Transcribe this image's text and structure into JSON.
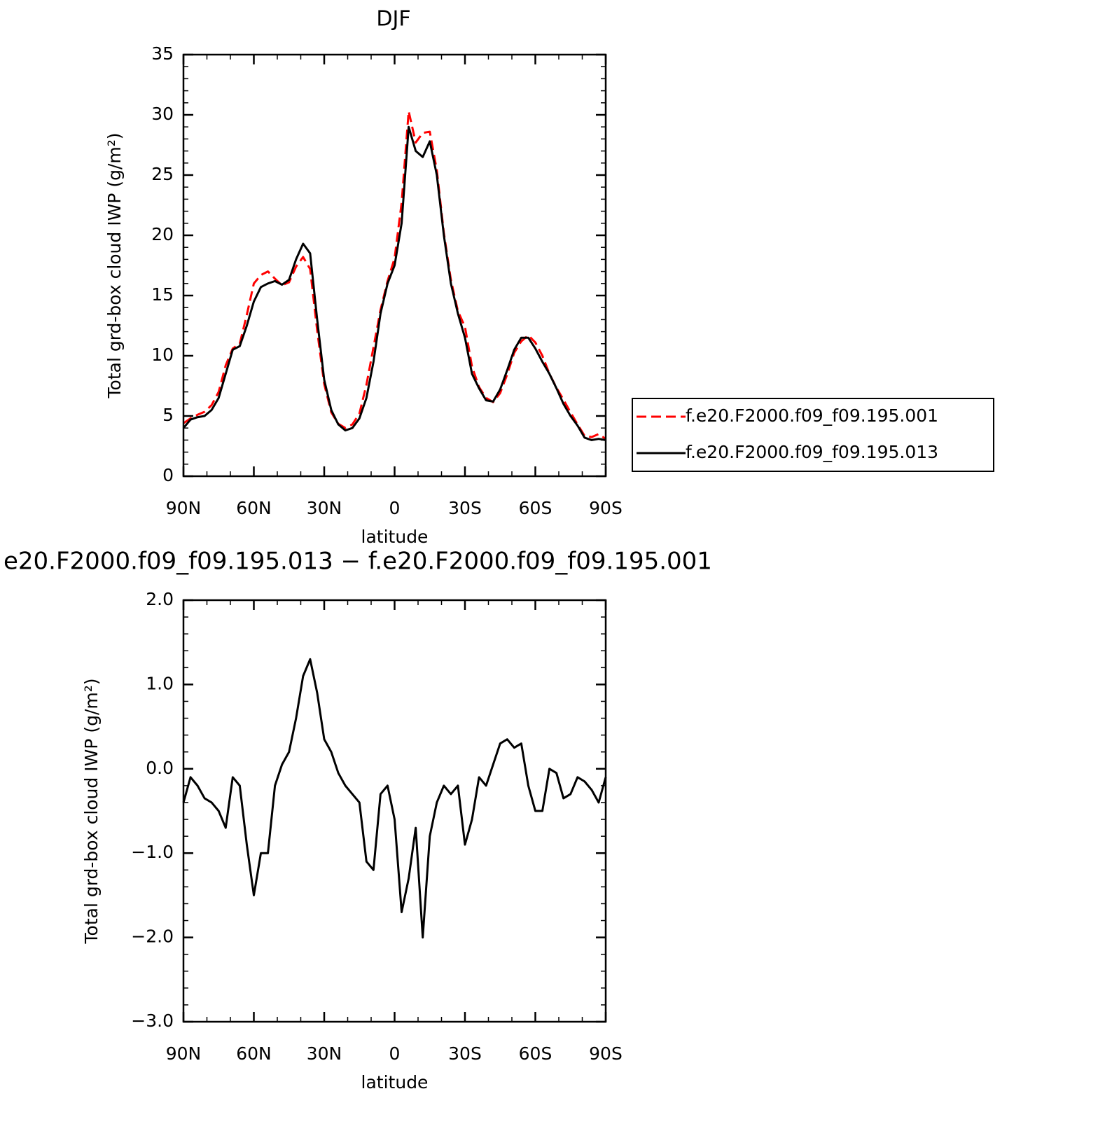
{
  "chart_data": [
    {
      "type": "line",
      "title": "DJF",
      "x_label": "latitude",
      "y_label": "Total grd-box cloud IWP (g/m²)",
      "x": [
        90,
        87,
        84,
        81,
        78,
        75,
        72,
        69,
        66,
        63,
        60,
        57,
        54,
        51,
        48,
        45,
        42,
        39,
        36,
        33,
        30,
        27,
        24,
        21,
        18,
        15,
        12,
        9,
        6,
        3,
        0,
        -3,
        -6,
        -9,
        -12,
        -15,
        -18,
        -21,
        -24,
        -27,
        -30,
        -33,
        -36,
        -39,
        -42,
        -45,
        -48,
        -51,
        -54,
        -57,
        -60,
        -63,
        -66,
        -69,
        -72,
        -75,
        -78,
        -81,
        -84,
        -87,
        -90
      ],
      "series": [
        {
          "name": "f.e20.F2000.f09_f09.195.001",
          "color": "#ff0000",
          "style": "dashed",
          "values": [
            4.4,
            4.8,
            5.1,
            5.35,
            5.9,
            7.0,
            9.2,
            10.6,
            11.0,
            13.4,
            16.0,
            16.7,
            17.0,
            16.4,
            15.85,
            16.1,
            17.4,
            18.2,
            17.2,
            12.1,
            7.65,
            5.3,
            4.35,
            4.0,
            4.3,
            5.2,
            7.6,
            10.7,
            13.8,
            16.2,
            18.1,
            22.7,
            30.3,
            27.7,
            28.5,
            28.6,
            25.4,
            20.2,
            16.3,
            13.7,
            12.4,
            9.1,
            7.4,
            6.5,
            6.15,
            6.9,
            8.45,
            10.25,
            11.2,
            11.7,
            11.1,
            10.0,
            8.5,
            7.35,
            6.35,
            5.3,
            4.3,
            3.35,
            3.25,
            3.5,
            3.1
          ]
        },
        {
          "name": "f.e20.F2000.f09_f09.195.013",
          "color": "#000000",
          "style": "solid",
          "values": [
            4.0,
            4.7,
            4.9,
            5.0,
            5.5,
            6.5,
            8.5,
            10.5,
            10.8,
            12.5,
            14.5,
            15.7,
            16.0,
            16.2,
            15.9,
            16.3,
            18.0,
            19.3,
            18.5,
            13.0,
            8.0,
            5.5,
            4.3,
            3.8,
            4.0,
            4.8,
            6.5,
            9.5,
            13.5,
            16.0,
            17.5,
            21.0,
            29.0,
            27.0,
            26.5,
            27.8,
            25.0,
            20.0,
            16.0,
            13.5,
            11.5,
            8.5,
            7.3,
            6.3,
            6.2,
            7.2,
            8.8,
            10.5,
            11.5,
            11.5,
            10.6,
            9.5,
            8.5,
            7.3,
            6.0,
            5.0,
            4.2,
            3.2,
            3.0,
            3.1,
            3.0
          ]
        }
      ],
      "xlim": [
        90,
        -90
      ],
      "xticks": [
        {
          "value": 90,
          "label": "90N"
        },
        {
          "value": 60,
          "label": "60N"
        },
        {
          "value": 30,
          "label": "30N"
        },
        0,
        {
          "value": -30,
          "label": "30S"
        },
        {
          "value": -60,
          "label": "60S"
        },
        {
          "value": -90,
          "label": "90S"
        }
      ],
      "ylim": [
        0,
        35
      ],
      "yticks": [
        0,
        5,
        10,
        15,
        20,
        25,
        30,
        35
      ],
      "legend": "right"
    },
    {
      "type": "line",
      "title": "e20.F2000.f09_f09.195.013 − f.e20.F2000.f09_f09.195.001",
      "x_label": "latitude",
      "y_label": "Total grd-box cloud IWP (g/m²)",
      "x": [
        90,
        87,
        84,
        81,
        78,
        75,
        72,
        69,
        66,
        63,
        60,
        57,
        54,
        51,
        48,
        45,
        42,
        39,
        36,
        33,
        30,
        27,
        24,
        21,
        18,
        15,
        12,
        9,
        6,
        3,
        0,
        -3,
        -6,
        -9,
        -12,
        -15,
        -18,
        -21,
        -24,
        -27,
        -30,
        -33,
        -36,
        -39,
        -42,
        -45,
        -48,
        -51,
        -54,
        -57,
        -60,
        -63,
        -66,
        -69,
        -72,
        -75,
        -78,
        -81,
        -84,
        -87,
        -90
      ],
      "series": [
        {
          "color": "#000000",
          "style": "solid",
          "values": [
            -0.4,
            -0.1,
            -0.2,
            -0.35,
            -0.4,
            -0.5,
            -0.7,
            -0.1,
            -0.2,
            -0.9,
            -1.5,
            -1.0,
            -1.0,
            -0.2,
            0.05,
            0.2,
            0.6,
            1.1,
            1.3,
            0.9,
            0.35,
            0.2,
            -0.05,
            -0.2,
            -0.3,
            -0.4,
            -1.1,
            -1.2,
            -0.3,
            -0.2,
            -0.6,
            -1.7,
            -1.3,
            -0.7,
            -2.0,
            -0.8,
            -0.4,
            -0.2,
            -0.3,
            -0.2,
            -0.9,
            -0.6,
            -0.1,
            -0.2,
            0.05,
            0.3,
            0.35,
            0.25,
            0.3,
            -0.2,
            -0.5,
            -0.5,
            0.0,
            -0.05,
            -0.35,
            -0.3,
            -0.1,
            -0.15,
            -0.25,
            -0.4,
            -0.1
          ]
        }
      ],
      "xlim": [
        90,
        -90
      ],
      "xticks": [
        {
          "value": 90,
          "label": "90N"
        },
        {
          "value": 60,
          "label": "60N"
        },
        {
          "value": 30,
          "label": "30N"
        },
        0,
        {
          "value": -30,
          "label": "30S"
        },
        {
          "value": -60,
          "label": "60S"
        },
        {
          "value": -90,
          "label": "90S"
        }
      ],
      "ylim": [
        -3,
        2
      ],
      "yticks": [
        {
          "value": -3,
          "label": "−3.0"
        },
        {
          "value": -2,
          "label": "−2.0"
        },
        {
          "value": -1,
          "label": "−1.0"
        },
        {
          "value": 0,
          "label": "0.0"
        },
        {
          "value": 1,
          "label": "1.0"
        },
        {
          "value": 2,
          "label": "2.0"
        }
      ]
    }
  ]
}
